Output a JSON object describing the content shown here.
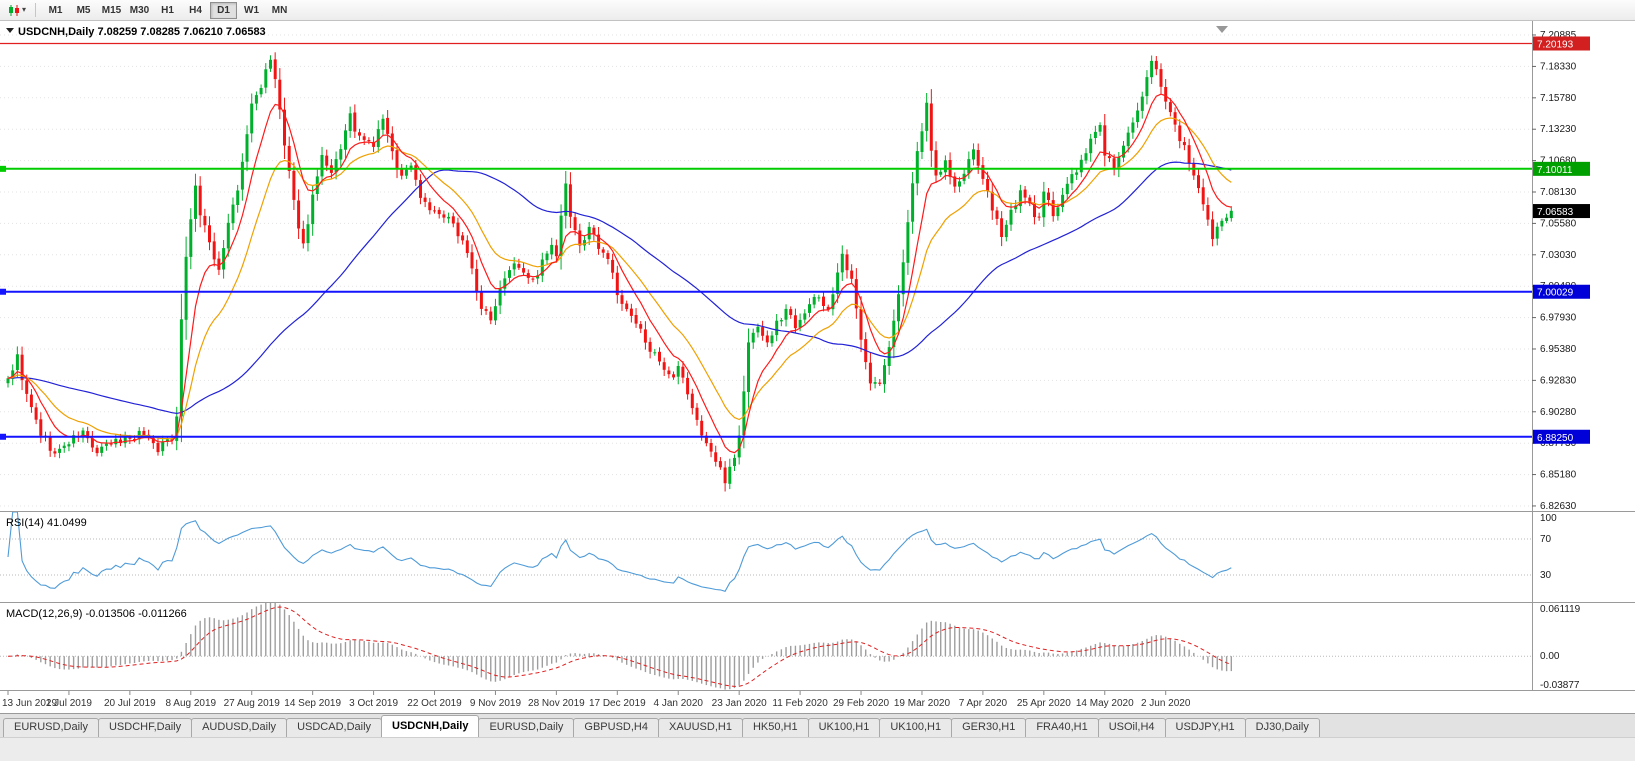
{
  "toolbar": {
    "chart_type_icon": "candlestick-chart-icon",
    "periods": [
      "M1",
      "M5",
      "M15",
      "M30",
      "H1",
      "H4",
      "D1",
      "W1",
      "MN"
    ],
    "active_period": "D1"
  },
  "chart": {
    "title": "USDCNH,Daily 7.08259 7.08285 7.06210 7.06583",
    "symbol": "USDCNH",
    "timeframe": "Daily"
  },
  "chart_data": {
    "type": "candlestick",
    "symbol": "USDCNH",
    "timeframe": "D1",
    "ohlc_display": {
      "open": "7.08259",
      "high": "7.08285",
      "low": "7.06210",
      "close": "7.06583"
    },
    "price_range": {
      "top": 7.2202,
      "bottom": 6.8222
    },
    "price_axis_ticks": [
      "7.20885",
      "7.18330",
      "7.15780",
      "7.13230",
      "7.10680",
      "7.08130",
      "7.05580",
      "7.03030",
      "7.00480",
      "6.97930",
      "6.95380",
      "6.92830",
      "6.90280",
      "6.87730",
      "6.85180",
      "6.82630"
    ],
    "num_candles": 262,
    "close_anchors": [
      [
        0,
        6.93
      ],
      [
        2,
        6.947
      ],
      [
        4,
        6.915
      ],
      [
        7,
        6.885
      ],
      [
        10,
        6.868
      ],
      [
        13,
        6.878
      ],
      [
        16,
        6.886
      ],
      [
        19,
        6.869
      ],
      [
        22,
        6.877
      ],
      [
        26,
        6.882
      ],
      [
        29,
        6.886
      ],
      [
        32,
        6.873
      ],
      [
        35,
        6.882
      ],
      [
        36,
        6.902
      ],
      [
        37,
        6.978
      ],
      [
        38,
        7.03
      ],
      [
        39,
        7.058
      ],
      [
        40,
        7.088
      ],
      [
        41,
        7.062
      ],
      [
        43,
        7.04
      ],
      [
        45,
        7.018
      ],
      [
        47,
        7.056
      ],
      [
        49,
        7.082
      ],
      [
        51,
        7.128
      ],
      [
        52,
        7.152
      ],
      [
        54,
        7.168
      ],
      [
        56,
        7.188
      ],
      [
        57,
        7.172
      ],
      [
        58,
        7.148
      ],
      [
        59,
        7.118
      ],
      [
        61,
        7.072
      ],
      [
        63,
        7.038
      ],
      [
        65,
        7.078
      ],
      [
        67,
        7.108
      ],
      [
        69,
        7.094
      ],
      [
        71,
        7.118
      ],
      [
        73,
        7.142
      ],
      [
        75,
        7.124
      ],
      [
        78,
        7.119
      ],
      [
        80,
        7.142
      ],
      [
        82,
        7.112
      ],
      [
        84,
        7.094
      ],
      [
        86,
        7.104
      ],
      [
        88,
        7.078
      ],
      [
        91,
        7.064
      ],
      [
        94,
        7.058
      ],
      [
        97,
        7.044
      ],
      [
        99,
        7.018
      ],
      [
        101,
        6.988
      ],
      [
        103,
        6.976
      ],
      [
        104,
        6.992
      ],
      [
        106,
        7.014
      ],
      [
        108,
        7.026
      ],
      [
        110,
        7.018
      ],
      [
        112,
        7.008
      ],
      [
        114,
        7.024
      ],
      [
        116,
        7.036
      ],
      [
        117,
        7.03
      ],
      [
        119,
        7.088
      ],
      [
        120,
        7.058
      ],
      [
        122,
        7.038
      ],
      [
        124,
        7.05
      ],
      [
        126,
        7.038
      ],
      [
        128,
        7.028
      ],
      [
        130,
        6.998
      ],
      [
        132,
        6.984
      ],
      [
        134,
        6.974
      ],
      [
        136,
        6.962
      ],
      [
        138,
        6.948
      ],
      [
        140,
        6.934
      ],
      [
        142,
        6.928
      ],
      [
        143,
        6.938
      ],
      [
        145,
        6.918
      ],
      [
        147,
        6.894
      ],
      [
        149,
        6.878
      ],
      [
        151,
        6.862
      ],
      [
        153,
        6.848
      ],
      [
        155,
        6.868
      ],
      [
        156,
        6.882
      ],
      [
        157,
        6.92
      ],
      [
        158,
        6.958
      ],
      [
        160,
        6.974
      ],
      [
        162,
        6.958
      ],
      [
        164,
        6.974
      ],
      [
        166,
        6.986
      ],
      [
        168,
        6.974
      ],
      [
        169,
        6.98
      ],
      [
        171,
        6.99
      ],
      [
        173,
        6.996
      ],
      [
        175,
        6.986
      ],
      [
        176,
        7.0
      ],
      [
        178,
        7.028
      ],
      [
        180,
        7.008
      ],
      [
        182,
        6.964
      ],
      [
        184,
        6.928
      ],
      [
        186,
        6.924
      ],
      [
        188,
        6.956
      ],
      [
        190,
        6.996
      ],
      [
        192,
        7.058
      ],
      [
        194,
        7.112
      ],
      [
        195,
        7.132
      ],
      [
        196,
        7.152
      ],
      [
        197,
        7.118
      ],
      [
        198,
        7.094
      ],
      [
        200,
        7.106
      ],
      [
        202,
        7.084
      ],
      [
        204,
        7.096
      ],
      [
        206,
        7.114
      ],
      [
        208,
        7.094
      ],
      [
        210,
        7.064
      ],
      [
        212,
        7.048
      ],
      [
        214,
        7.066
      ],
      [
        216,
        7.08
      ],
      [
        218,
        7.07
      ],
      [
        220,
        7.058
      ],
      [
        221,
        7.08
      ],
      [
        223,
        7.064
      ],
      [
        225,
        7.08
      ],
      [
        227,
        7.094
      ],
      [
        229,
        7.104
      ],
      [
        231,
        7.124
      ],
      [
        233,
        7.134
      ],
      [
        234,
        7.114
      ],
      [
        236,
        7.1
      ],
      [
        238,
        7.12
      ],
      [
        240,
        7.136
      ],
      [
        242,
        7.156
      ],
      [
        244,
        7.19
      ],
      [
        245,
        7.182
      ],
      [
        246,
        7.17
      ],
      [
        247,
        7.156
      ],
      [
        249,
        7.134
      ],
      [
        251,
        7.118
      ],
      [
        253,
        7.094
      ],
      [
        255,
        7.068
      ],
      [
        257,
        7.044
      ],
      [
        259,
        7.058
      ],
      [
        261,
        7.066
      ]
    ],
    "x_label_every": 13,
    "x_axis_labels": [
      "13 Jun 2019",
      "2 Jul 2019",
      "20 Jul 2019",
      "8 Aug 2019",
      "27 Aug 2019",
      "14 Sep 2019",
      "3 Oct 2019",
      "22 Oct 2019",
      "9 Nov 2019",
      "28 Nov 2019",
      "17 Dec 2019",
      "4 Jan 2020",
      "23 Jan 2020",
      "11 Feb 2020",
      "29 Feb 2020",
      "19 Mar 2020",
      "7 Apr 2020",
      "25 Apr 2020",
      "14 May 2020",
      "2 Jun 2020"
    ],
    "colors": {
      "up": "#00b02c",
      "down": "#f01414",
      "grid": "#e3e3e3"
    },
    "mas": [
      {
        "type": "ema",
        "period": 8,
        "color": "#ff1a1a"
      },
      {
        "type": "ema",
        "period": 18,
        "color": "#f0a000"
      },
      {
        "type": "sma",
        "period": 55,
        "color": "#2222d6"
      }
    ],
    "hlines": [
      {
        "price": 7.20193,
        "label": "7.20193",
        "color": "#e02020",
        "badge": "#d21f1f",
        "width": 1.2
      },
      {
        "price": 7.10011,
        "label": "7.10011",
        "color": "#00cc00",
        "badge": "#00a000",
        "width": 2
      },
      {
        "price": 7.00029,
        "label": "7.00029",
        "color": "#1414ff",
        "badge": "#0000d8",
        "width": 2
      },
      {
        "price": 6.8825,
        "label": "6.88250",
        "color": "#1414ff",
        "badge": "#0000d8",
        "width": 2
      }
    ],
    "current_price": {
      "value": 7.06583,
      "label": "7.06583",
      "badge": "#000000"
    },
    "rsi": {
      "label": "RSI(14) 41.0499",
      "period": 14,
      "color": "#4f9bd8",
      "levels": [
        {
          "value": 100,
          "label": "100"
        },
        {
          "value": 70,
          "label": "70"
        },
        {
          "value": 30,
          "label": "30"
        }
      ]
    },
    "macd": {
      "label": "MACD(12,26,9) -0.013506 -0.011266",
      "fast": 12,
      "slow": 26,
      "signal_period": 9,
      "histogram_color": "#9e9e9e",
      "signal_color": "#e02020",
      "axis": {
        "max": 0.061119,
        "max_label": "0.061119",
        "zero_label": "0.00",
        "min": -0.03877,
        "min_label": "-0.03877"
      }
    }
  },
  "tabs": {
    "items": [
      "EURUSD,Daily",
      "USDCHF,Daily",
      "AUDUSD,Daily",
      "USDCAD,Daily",
      "USDCNH,Daily",
      "EURUSD,Daily",
      "GBPUSD,H4",
      "XAUUSD,H1",
      "HK50,H1",
      "UK100,H1",
      "UK100,H1",
      "GER30,H1",
      "FRA40,H1",
      "USOil,H4",
      "USDJPY,H1",
      "DJ30,Daily"
    ],
    "active_index": 4
  }
}
